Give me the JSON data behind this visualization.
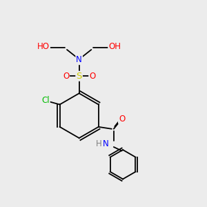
{
  "bg_color": "#ececec",
  "bond_color": "#000000",
  "atom_colors": {
    "O": "#ff0000",
    "N": "#0000ff",
    "S": "#cccc00",
    "Cl": "#00bb00",
    "H": "#808080",
    "C": "#000000"
  },
  "bond_width": 1.3,
  "font_size": 8.5
}
